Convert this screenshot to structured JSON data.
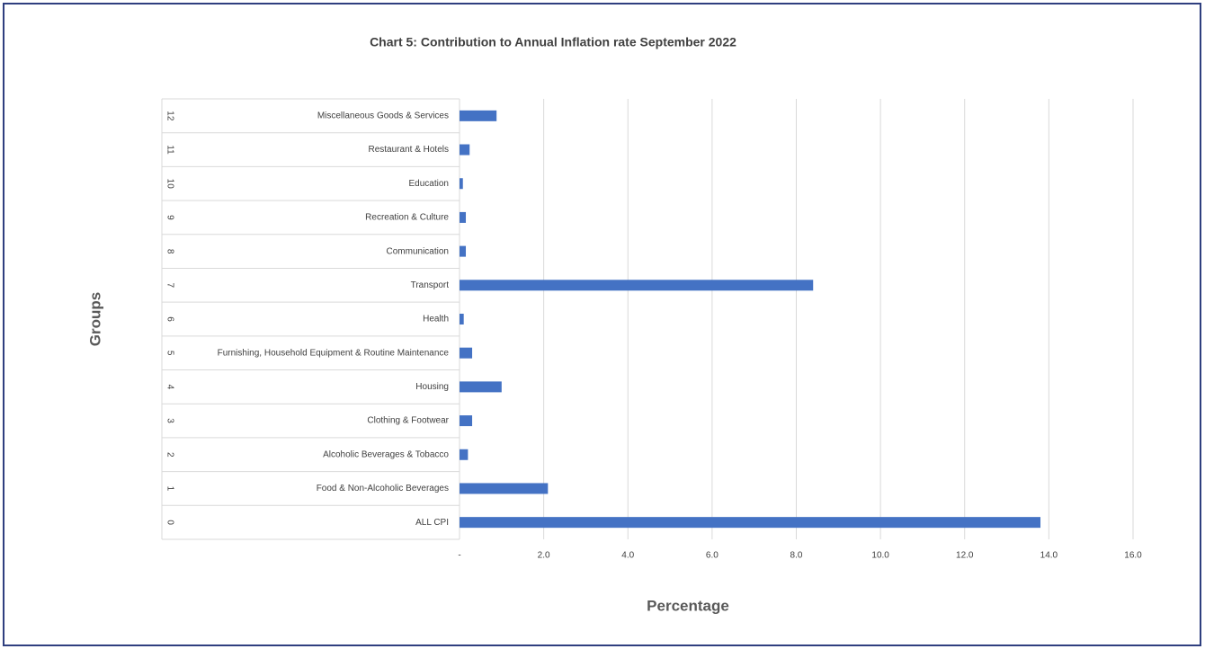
{
  "chart_data": {
    "type": "bar",
    "orientation": "horizontal",
    "title": "Chart 5: Contribution to Annual  Inflation rate September 2022",
    "x_label": "Percentage",
    "y_label": "Groups",
    "group_numbers": [
      "0",
      "1",
      "2",
      "3",
      "4",
      "5",
      "6",
      "7",
      "8",
      "9",
      "10",
      "11",
      "12"
    ],
    "categories": [
      "ALL CPI",
      "Food & Non-Alcoholic Beverages",
      "Alcoholic Beverages & Tobacco",
      "Clothing & Footwear",
      "Housing",
      "Furnishing, Household Equipment & Routine Maintenance",
      "Health",
      "Transport",
      "Communication",
      "Recreation & Culture",
      "Education",
      "Restaurant & Hotels",
      "Miscellaneous Goods & Services"
    ],
    "values": [
      13.8,
      2.1,
      0.2,
      0.3,
      1.0,
      0.3,
      0.1,
      8.4,
      0.15,
      0.15,
      0.08,
      0.24,
      0.88
    ],
    "color": "#4472c4",
    "xlim": [
      0,
      16
    ],
    "xticks": [
      {
        "value": 0,
        "label": "-"
      },
      {
        "value": 2,
        "label": "2.0"
      },
      {
        "value": 4,
        "label": "4.0"
      },
      {
        "value": 6,
        "label": "6.0"
      },
      {
        "value": 8,
        "label": "8.0"
      },
      {
        "value": 10,
        "label": "10.0"
      },
      {
        "value": 12,
        "label": "12.0"
      },
      {
        "value": 14,
        "label": "14.0"
      },
      {
        "value": 16,
        "label": "16.0"
      }
    ],
    "grid": true
  }
}
